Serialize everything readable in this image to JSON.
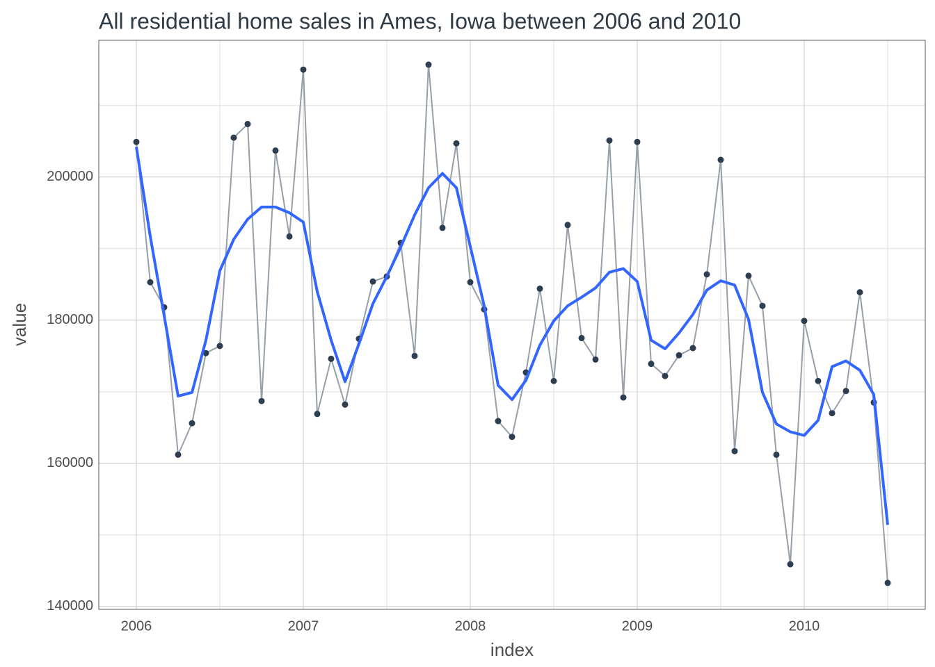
{
  "chart_data": {
    "type": "line",
    "title": "All residential home sales in Ames, Iowa between 2006 and 2010",
    "x_label": "index",
    "y_label": "value",
    "x": [
      2006,
      2006.0833,
      2006.1667,
      2006.25,
      2006.3333,
      2006.4167,
      2006.5,
      2006.5833,
      2006.6667,
      2006.75,
      2006.8333,
      2006.9167,
      2007,
      2007.0833,
      2007.1667,
      2007.25,
      2007.3333,
      2007.4167,
      2007.5,
      2007.5833,
      2007.6667,
      2007.75,
      2007.8333,
      2007.9167,
      2008,
      2008.0833,
      2008.1667,
      2008.25,
      2008.3333,
      2008.4167,
      2008.5,
      2008.5833,
      2008.6667,
      2008.75,
      2008.8333,
      2008.9167,
      2009,
      2009.0833,
      2009.1667,
      2009.25,
      2009.3333,
      2009.4167,
      2009.5,
      2009.5833,
      2009.6667,
      2009.75,
      2009.8333,
      2009.9167,
      2010,
      2010.0833,
      2010.1667,
      2010.25,
      2010.3333,
      2010.4167,
      2010.5
    ],
    "series": [
      {
        "color": "#2c3e50",
        "line_color": "#959fa9",
        "line_width": 2,
        "markers": true,
        "values": [
          204900,
          185300,
          181800,
          161200,
          165600,
          175400,
          176400,
          205500,
          207400,
          168700,
          203700,
          191700,
          215000,
          166900,
          174600,
          168200,
          177400,
          185400,
          186100,
          190800,
          175000,
          215700,
          192900,
          204700,
          185300,
          181500,
          165900,
          163700,
          172700,
          184400,
          171500,
          193300,
          177500,
          174500,
          205100,
          169200,
          204900,
          173900,
          172200,
          175100,
          176100,
          186400,
          202400,
          161700,
          186200,
          182000,
          161200,
          145900,
          179900,
          171500,
          167000,
          170100,
          183900,
          168500,
          143300
        ]
      },
      {
        "color": "#3366ff",
        "line_width": 4,
        "markers": false,
        "values": [
          204200,
          191700,
          180600,
          169400,
          169900,
          177200,
          186900,
          191300,
          194100,
          195800,
          195800,
          195000,
          193700,
          184000,
          177200,
          171400,
          176700,
          182300,
          186100,
          190200,
          194700,
          198500,
          200500,
          198500,
          190300,
          182000,
          170900,
          168900,
          171600,
          176500,
          179900,
          182000,
          183200,
          184500,
          186700,
          187200,
          185400,
          177200,
          176000,
          178200,
          180800,
          184200,
          185500,
          184900,
          180100,
          169900,
          165500,
          164400,
          163900,
          166000,
          173500,
          174300,
          173000,
          169600,
          151400
        ]
      }
    ],
    "xlim": [
      2005.775,
      2010.725
    ],
    "xticks": [
      2006,
      2007,
      2008,
      2009,
      2010
    ],
    "x_minor_ticks": [
      2006.5,
      2007.5,
      2008.5,
      2009.5,
      2010.5
    ],
    "ylim": [
      139600,
      219100
    ],
    "yticks": [
      140000,
      160000,
      180000,
      200000
    ],
    "y_minor_ticks": [
      150000,
      170000,
      190000,
      210000
    ],
    "grid": true
  }
}
